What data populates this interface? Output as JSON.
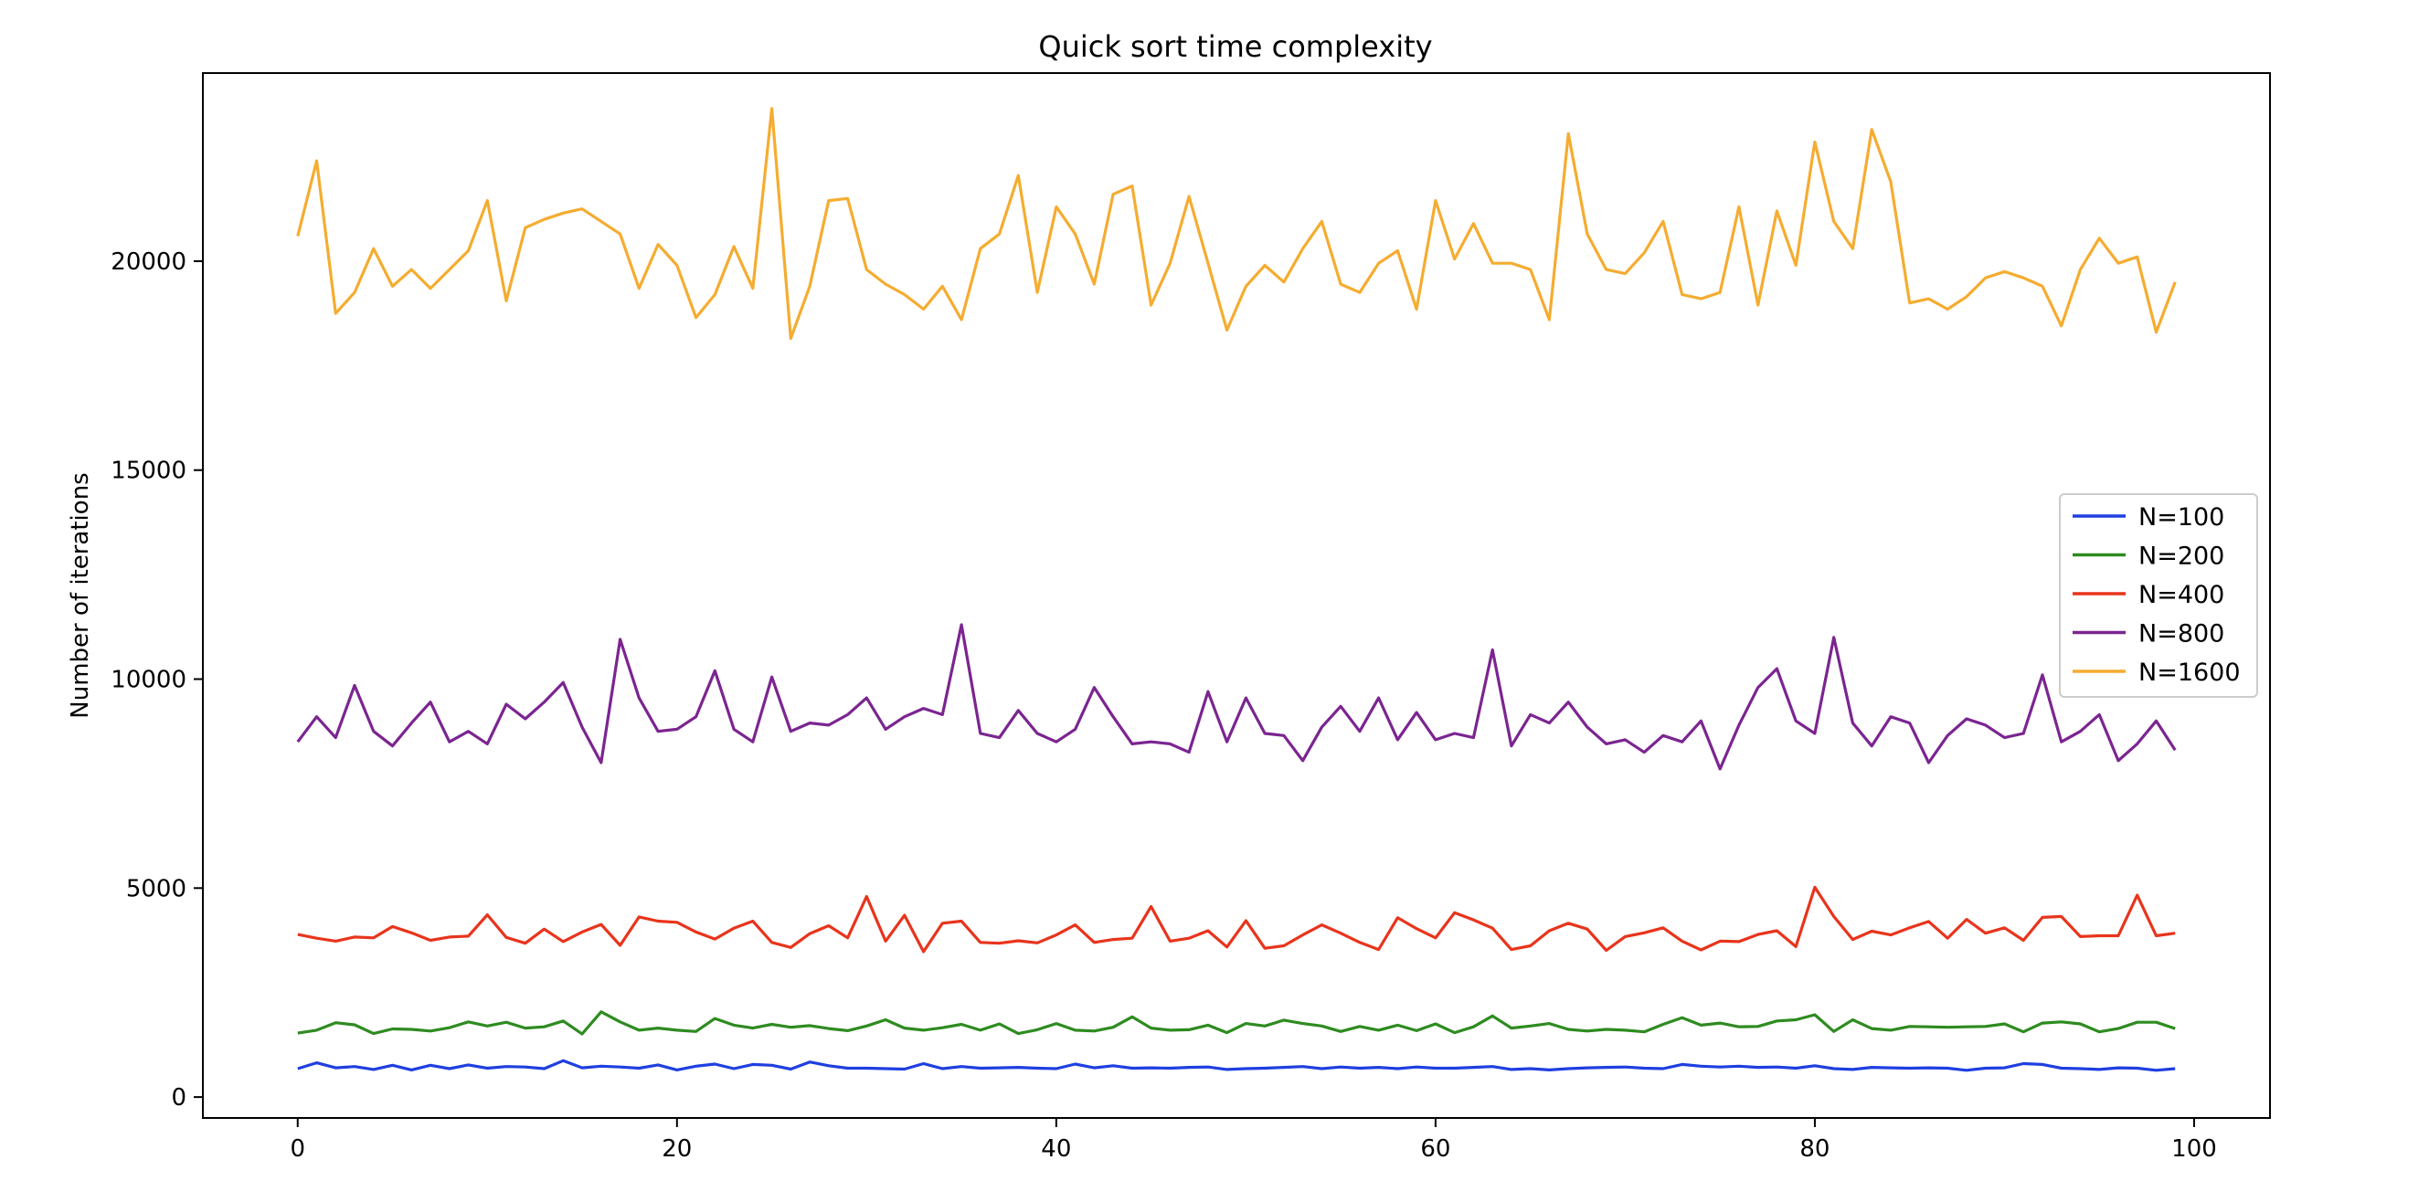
{
  "chart_data": {
    "type": "line",
    "title": "Quick sort time complexity",
    "xlabel": "",
    "ylabel": "Number of iterations",
    "xlim": [
      -5,
      104
    ],
    "ylim": [
      -500,
      24500
    ],
    "xticks": [
      0,
      20,
      40,
      60,
      80,
      100
    ],
    "yticks": [
      0,
      5000,
      10000,
      15000,
      20000
    ],
    "grid": false,
    "legend_position": "center-right",
    "x": [
      0,
      1,
      2,
      3,
      4,
      5,
      6,
      7,
      8,
      9,
      10,
      11,
      12,
      13,
      14,
      15,
      16,
      17,
      18,
      19,
      20,
      21,
      22,
      23,
      24,
      25,
      26,
      27,
      28,
      29,
      30,
      31,
      32,
      33,
      34,
      35,
      36,
      37,
      38,
      39,
      40,
      41,
      42,
      43,
      44,
      45,
      46,
      47,
      48,
      49,
      50,
      51,
      52,
      53,
      54,
      55,
      56,
      57,
      58,
      59,
      60,
      61,
      62,
      63,
      64,
      65,
      66,
      67,
      68,
      69,
      70,
      71,
      72,
      73,
      74,
      75,
      76,
      77,
      78,
      79,
      80,
      81,
      82,
      83,
      84,
      85,
      86,
      87,
      88,
      89,
      90,
      91,
      92,
      93,
      94,
      95,
      96,
      97,
      98,
      99
    ],
    "series": [
      {
        "name": "N=100",
        "color": "#1f3fe0",
        "values": [
          680,
          820,
          700,
          730,
          660,
          760,
          650,
          760,
          680,
          770,
          690,
          730,
          720,
          680,
          870,
          700,
          740,
          720,
          690,
          770,
          650,
          740,
          790,
          680,
          780,
          760,
          670,
          840,
          750,
          690,
          690,
          680,
          670,
          800,
          680,
          730,
          690,
          700,
          710,
          690,
          680,
          790,
          700,
          750,
          690,
          700,
          690,
          710,
          720,
          660,
          680,
          690,
          710,
          730,
          680,
          720,
          690,
          710,
          680,
          720,
          690,
          690,
          710,
          730,
          660,
          680,
          650,
          680,
          700,
          710,
          720,
          690,
          680,
          780,
          740,
          720,
          740,
          710,
          720,
          690,
          750,
          680,
          660,
          710,
          700,
          690,
          700,
          690,
          640,
          690,
          700,
          800,
          780,
          690,
          680,
          660,
          700,
          690,
          640,
          680
        ]
      },
      {
        "name": "N=200",
        "color": "#2e8b20",
        "values": [
          1530,
          1600,
          1780,
          1730,
          1520,
          1630,
          1620,
          1580,
          1660,
          1800,
          1700,
          1790,
          1650,
          1680,
          1820,
          1510,
          2040,
          1800,
          1600,
          1650,
          1600,
          1570,
          1880,
          1720,
          1650,
          1740,
          1670,
          1710,
          1640,
          1590,
          1700,
          1850,
          1650,
          1600,
          1660,
          1740,
          1600,
          1750,
          1520,
          1610,
          1760,
          1600,
          1580,
          1670,
          1920,
          1650,
          1600,
          1610,
          1720,
          1540,
          1760,
          1700,
          1840,
          1760,
          1700,
          1570,
          1690,
          1600,
          1720,
          1590,
          1750,
          1540,
          1680,
          1940,
          1650,
          1700,
          1760,
          1620,
          1580,
          1620,
          1600,
          1560,
          1740,
          1900,
          1720,
          1770,
          1680,
          1690,
          1820,
          1850,
          1970,
          1570,
          1850,
          1640,
          1600,
          1690,
          1680,
          1670,
          1680,
          1690,
          1750,
          1560,
          1770,
          1800,
          1750,
          1560,
          1640,
          1790,
          1790,
          1640
        ]
      },
      {
        "name": "N=400",
        "color": "#e8341c",
        "values": [
          3890,
          3800,
          3730,
          3830,
          3810,
          4080,
          3930,
          3750,
          3830,
          3850,
          4360,
          3820,
          3680,
          4020,
          3720,
          3950,
          4130,
          3630,
          4310,
          4210,
          4180,
          3950,
          3780,
          4040,
          4210,
          3700,
          3580,
          3910,
          4100,
          3810,
          4800,
          3730,
          4350,
          3480,
          4160,
          4210,
          3700,
          3680,
          3740,
          3690,
          3880,
          4120,
          3700,
          3770,
          3800,
          4560,
          3730,
          3800,
          3980,
          3590,
          4220,
          3560,
          3620,
          3880,
          4120,
          3920,
          3700,
          3530,
          4290,
          4030,
          3810,
          4410,
          4240,
          4040,
          3530,
          3620,
          3980,
          4160,
          4020,
          3510,
          3840,
          3930,
          4050,
          3730,
          3520,
          3730,
          3720,
          3890,
          3980,
          3600,
          5020,
          4320,
          3770,
          3970,
          3880,
          4050,
          4200,
          3800,
          4250,
          3920,
          4050,
          3750,
          4300,
          4320,
          3840,
          3860,
          3860,
          4830,
          3860,
          3920
        ]
      },
      {
        "name": "N=800",
        "color": "#7b2590",
        "values": [
          8500,
          9100,
          8600,
          9850,
          8750,
          8400,
          8950,
          9450,
          8500,
          8750,
          8450,
          9400,
          9050,
          9450,
          9920,
          8850,
          8000,
          10950,
          9550,
          8750,
          8800,
          9100,
          10200,
          8800,
          8500,
          10050,
          8750,
          8950,
          8900,
          9150,
          9550,
          8800,
          9100,
          9300,
          9150,
          11300,
          8700,
          8600,
          9250,
          8700,
          8500,
          8800,
          9800,
          9100,
          8450,
          8500,
          8450,
          8250,
          9700,
          8500,
          9550,
          8700,
          8650,
          8050,
          8850,
          9350,
          8750,
          9550,
          8550,
          9200,
          8550,
          8700,
          8600,
          10700,
          8400,
          9150,
          8950,
          9450,
          8850,
          8450,
          8550,
          8250,
          8650,
          8500,
          9000,
          7850,
          8900,
          9800,
          10250,
          9000,
          8700,
          11000,
          8950,
          8400,
          9100,
          8950,
          8000,
          8650,
          9050,
          8900,
          8600,
          8700,
          10100,
          8500,
          8750,
          9150,
          8050,
          8450,
          9000,
          8300
        ]
      },
      {
        "name": "N=1600",
        "color": "#f5ac30",
        "values": [
          20600,
          22400,
          18750,
          19250,
          20300,
          19400,
          19800,
          19350,
          19800,
          20250,
          21450,
          19050,
          20800,
          21000,
          21150,
          21250,
          20950,
          20650,
          19350,
          20400,
          19900,
          18650,
          19200,
          20350,
          19350,
          23650,
          18150,
          19400,
          21450,
          21500,
          19800,
          19450,
          19200,
          18850,
          19400,
          18600,
          20300,
          20650,
          22050,
          19250,
          21300,
          20650,
          19450,
          21600,
          21800,
          18950,
          19950,
          21550,
          19950,
          18350,
          19400,
          19900,
          19500,
          20300,
          20950,
          19450,
          19250,
          19950,
          20250,
          18850,
          21450,
          20050,
          20900,
          19950,
          19950,
          19800,
          18600,
          23050,
          20650,
          19800,
          19700,
          20200,
          20950,
          19200,
          19100,
          19250,
          21300,
          18950,
          21200,
          19900,
          22850,
          20950,
          20300,
          23150,
          21900,
          19000,
          19100,
          18850,
          19150,
          19600,
          19750,
          19600,
          19400,
          18450,
          19800,
          20550,
          19950,
          20100,
          18300,
          19500
        ]
      }
    ]
  }
}
